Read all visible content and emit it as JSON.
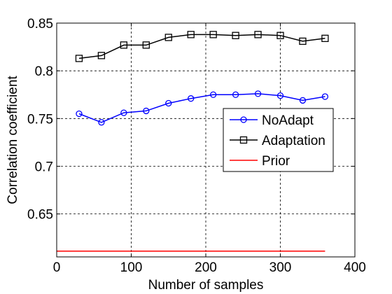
{
  "chart_data": {
    "type": "line",
    "title": "",
    "xlabel": "Number of samples",
    "ylabel": "Correlation coefficient",
    "xlim": [
      0,
      400
    ],
    "ylim": [
      0.605,
      0.85
    ],
    "xticks": [
      0,
      100,
      200,
      300,
      400
    ],
    "yticks": [
      0.65,
      0.7,
      0.75,
      0.8,
      0.85
    ],
    "xtick_labels": [
      "0",
      "100",
      "200",
      "300",
      "400"
    ],
    "ytick_labels": [
      "0.65",
      "0.7",
      "0.75",
      "0.8",
      "0.85"
    ],
    "grid": true,
    "legend_position": "right",
    "series": [
      {
        "name": "NoAdapt",
        "color": "#0000ff",
        "marker": "circle",
        "x": [
          30,
          60,
          90,
          120,
          150,
          180,
          210,
          240,
          270,
          300,
          330,
          360
        ],
        "y": [
          0.755,
          0.746,
          0.756,
          0.758,
          0.766,
          0.771,
          0.775,
          0.775,
          0.776,
          0.774,
          0.769,
          0.773
        ]
      },
      {
        "name": "Adaptation",
        "color": "#000000",
        "marker": "square",
        "x": [
          30,
          60,
          90,
          120,
          150,
          180,
          210,
          240,
          270,
          300,
          330,
          360
        ],
        "y": [
          0.813,
          0.816,
          0.827,
          0.827,
          0.835,
          0.838,
          0.838,
          0.837,
          0.838,
          0.837,
          0.831,
          0.834
        ]
      },
      {
        "name": "Prior",
        "color": "#ff0000",
        "marker": "none",
        "x": [
          0,
          360
        ],
        "y": [
          0.611,
          0.611
        ]
      }
    ]
  }
}
